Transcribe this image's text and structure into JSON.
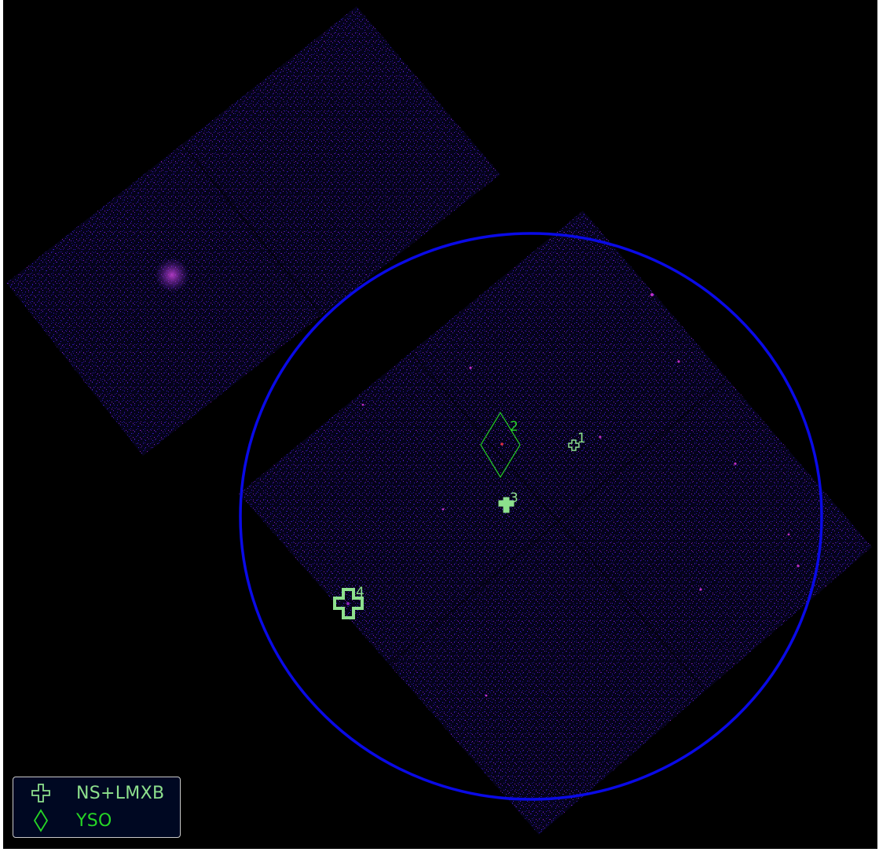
{
  "image": {
    "background": "#000000",
    "photon_color_primary": "#3a1ad8",
    "photon_color_secondary": "#8a1fb8",
    "bright_source_color": "#d030c8"
  },
  "fov_circle": {
    "color": "#0a0ae6"
  },
  "sources": [
    {
      "id": "1",
      "label": "1",
      "class": "NS+LMXB",
      "marker": "cross",
      "color": "#8de08d"
    },
    {
      "id": "2",
      "label": "2",
      "class": "YSO",
      "marker": "diamond",
      "color": "#26d626"
    },
    {
      "id": "3",
      "label": "3",
      "class": "NS+LMXB",
      "marker": "cross-filled",
      "color": "#8de08d"
    },
    {
      "id": "4",
      "label": "4",
      "class": "NS+LMXB",
      "marker": "cross",
      "color": "#8de08d"
    }
  ],
  "legend": {
    "items": [
      {
        "label": "NS+LMXB",
        "marker": "cross-icon",
        "color": "#8de08d"
      },
      {
        "label": "YSO",
        "marker": "diamond-icon",
        "color": "#26d626"
      }
    ]
  }
}
